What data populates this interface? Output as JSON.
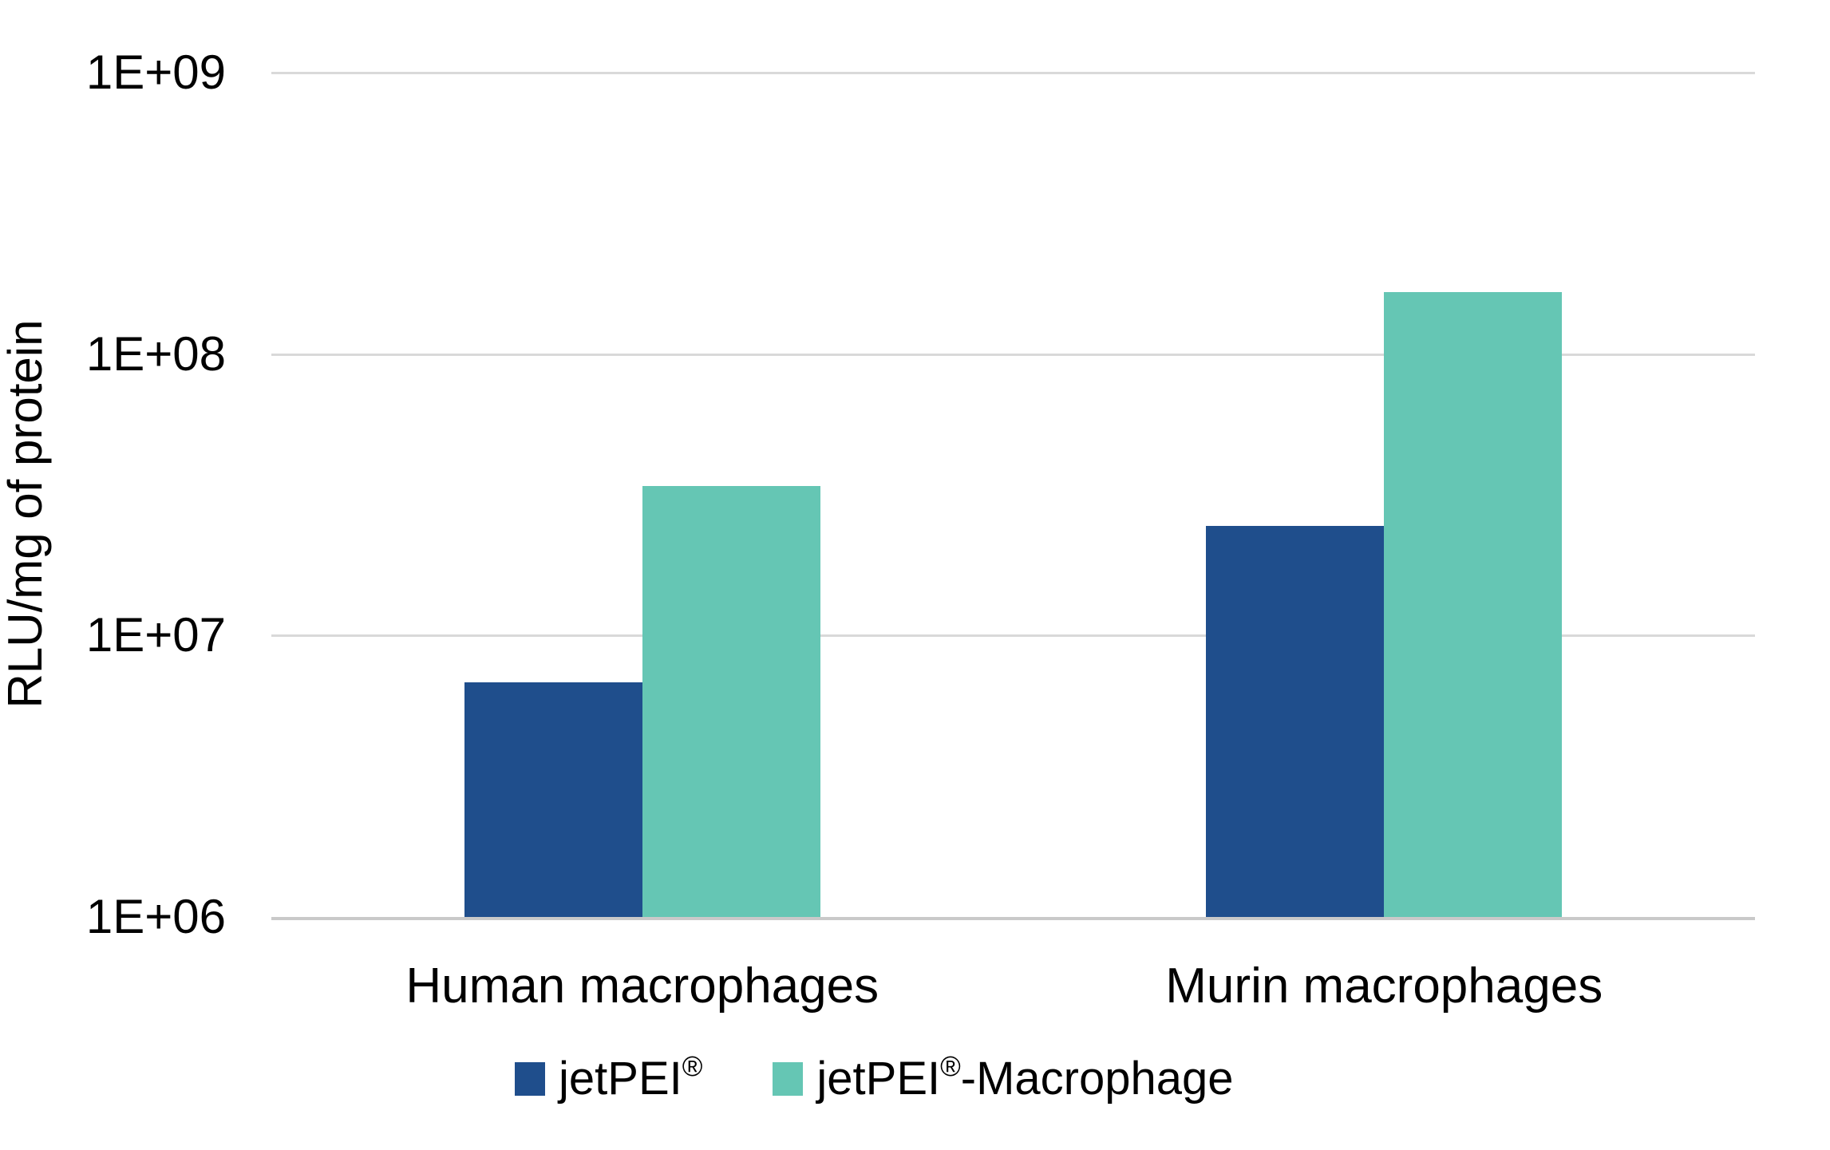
{
  "chart_data": {
    "type": "bar",
    "title": "",
    "categories": [
      "Human macrophages",
      "Murin macrophages"
    ],
    "series": [
      {
        "name": "jetPEI®",
        "color": "#1F4E8C",
        "values": [
          6800000,
          24500000
        ]
      },
      {
        "name": "jetPEI®-Macrophage",
        "color": "#65C6B4",
        "values": [
          34000000,
          166000000
        ]
      }
    ],
    "xlabel": "",
    "ylabel": "RLU/mg of protein",
    "yscale": "log",
    "ylim": [
      1000000,
      1000000000
    ],
    "yticks": [
      "1E+06",
      "1E+07",
      "1E+08",
      "1E+09"
    ],
    "grid": true,
    "legend_position": "bottom"
  },
  "colors": {
    "gridline": "#D9D9D9",
    "baseline": "#C9C9C9",
    "text": "#000000",
    "background": "#FFFFFF"
  }
}
